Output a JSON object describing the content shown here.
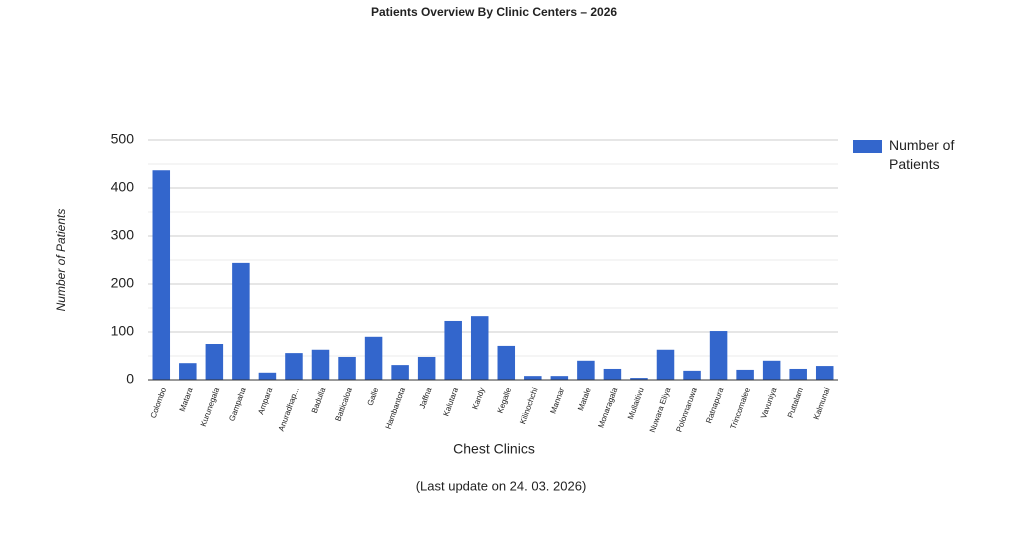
{
  "chart_data": {
    "type": "bar",
    "title": "Patients Overview By Clinic Centers –  2026",
    "x_label": "Chest Clinics",
    "y_label": "Number of Patients",
    "footnote": "(Last update on 24. 03. 2026)",
    "categories": [
      "Colombo",
      "Matara",
      "Kurunegala",
      "Gampaha",
      "Ampara",
      "Anuradhap...",
      "Badulla",
      "Batticaloa",
      "Galle",
      "Hambantota",
      "Jaffna",
      "Kalutara",
      "Kandy",
      "Kegalle",
      "Kilinochchi",
      "Mannar",
      "Matale",
      "Monaragala",
      "Mullaitivu",
      "Nuwara Eliya",
      "Polonnaruwa",
      "Ratnapura",
      "Trincomalee",
      "Vavuniya",
      "Puttalam",
      "Kalmunai"
    ],
    "series": [
      {
        "name": "Number of Patients",
        "color": "#3366cc",
        "values": [
          437,
          35,
          75,
          244,
          15,
          56,
          63,
          48,
          90,
          31,
          48,
          123,
          133,
          71,
          8,
          8,
          40,
          23,
          4,
          63,
          19,
          102,
          21,
          40,
          23,
          29
        ]
      }
    ],
    "ylim": [
      0,
      500
    ],
    "yticks": [
      0,
      100,
      200,
      300,
      400,
      500
    ],
    "minor_yticks": [
      50,
      150,
      250,
      350,
      450
    ],
    "grid": true,
    "legend": "right"
  }
}
